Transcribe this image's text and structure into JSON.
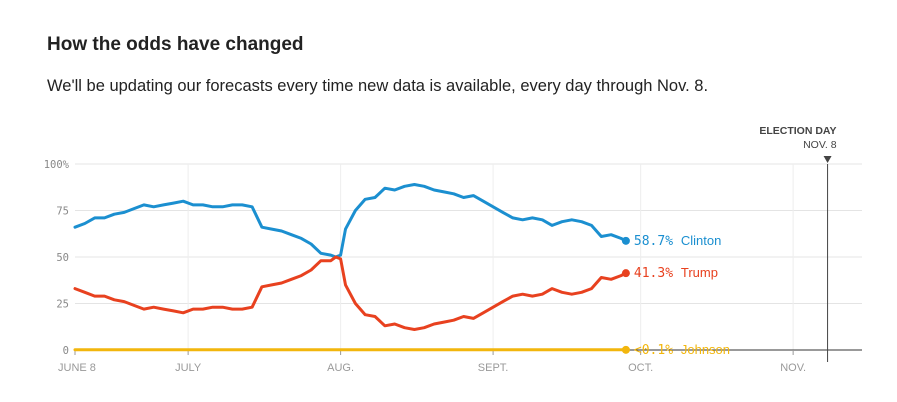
{
  "header": {
    "title": "How the odds have changed",
    "subtitle": "We'll be updating our forecasts every time new data is available, every day through Nov. 8."
  },
  "chart_data": {
    "type": "line",
    "title": "How the odds have changed",
    "subtitle": "We'll be updating our forecasts every time new data is available, every day through Nov. 8.",
    "xlabel": "",
    "ylabel": "",
    "x_range": [
      "2016-06-08",
      "2016-11-15"
    ],
    "ylim": [
      0,
      100
    ],
    "y_ticks": [
      0,
      25,
      50,
      75,
      100
    ],
    "y_tick_labels": [
      "0",
      "25",
      "50",
      "75",
      "100%"
    ],
    "x_ticks": [
      {
        "date": "2016-06-08",
        "label": "JUNE 8"
      },
      {
        "date": "2016-07-01",
        "label": "JULY"
      },
      {
        "date": "2016-08-01",
        "label": "AUG."
      },
      {
        "date": "2016-09-01",
        "label": "SEPT."
      },
      {
        "date": "2016-10-01",
        "label": "OCT."
      },
      {
        "date": "2016-11-01",
        "label": "NOV."
      }
    ],
    "grid": true,
    "event_marker": {
      "date": "2016-11-08",
      "label": "ELECTION DAY",
      "sublabel": "NOV. 8"
    },
    "series": [
      {
        "name": "Clinton",
        "color": "#1b8fd0",
        "end_label": "58.7%",
        "points": [
          [
            "2016-06-08",
            66
          ],
          [
            "2016-06-10",
            68
          ],
          [
            "2016-06-12",
            71
          ],
          [
            "2016-06-14",
            71
          ],
          [
            "2016-06-16",
            73
          ],
          [
            "2016-06-18",
            74
          ],
          [
            "2016-06-20",
            76
          ],
          [
            "2016-06-22",
            78
          ],
          [
            "2016-06-24",
            77
          ],
          [
            "2016-06-26",
            78
          ],
          [
            "2016-06-28",
            79
          ],
          [
            "2016-06-30",
            80
          ],
          [
            "2016-07-02",
            78
          ],
          [
            "2016-07-04",
            78
          ],
          [
            "2016-07-06",
            77
          ],
          [
            "2016-07-08",
            77
          ],
          [
            "2016-07-10",
            78
          ],
          [
            "2016-07-12",
            78
          ],
          [
            "2016-07-14",
            77
          ],
          [
            "2016-07-16",
            66
          ],
          [
            "2016-07-18",
            65
          ],
          [
            "2016-07-20",
            64
          ],
          [
            "2016-07-22",
            62
          ],
          [
            "2016-07-24",
            60
          ],
          [
            "2016-07-26",
            57
          ],
          [
            "2016-07-28",
            52
          ],
          [
            "2016-07-30",
            51
          ],
          [
            "2016-07-31",
            50
          ],
          [
            "2016-08-01",
            51
          ],
          [
            "2016-08-02",
            65
          ],
          [
            "2016-08-04",
            75
          ],
          [
            "2016-08-06",
            81
          ],
          [
            "2016-08-08",
            82
          ],
          [
            "2016-08-10",
            87
          ],
          [
            "2016-08-12",
            86
          ],
          [
            "2016-08-14",
            88
          ],
          [
            "2016-08-16",
            89
          ],
          [
            "2016-08-18",
            88
          ],
          [
            "2016-08-20",
            86
          ],
          [
            "2016-08-22",
            85
          ],
          [
            "2016-08-24",
            84
          ],
          [
            "2016-08-26",
            82
          ],
          [
            "2016-08-28",
            83
          ],
          [
            "2016-08-30",
            80
          ],
          [
            "2016-09-01",
            77
          ],
          [
            "2016-09-03",
            74
          ],
          [
            "2016-09-05",
            71
          ],
          [
            "2016-09-07",
            70
          ],
          [
            "2016-09-09",
            71
          ],
          [
            "2016-09-11",
            70
          ],
          [
            "2016-09-13",
            67
          ],
          [
            "2016-09-15",
            69
          ],
          [
            "2016-09-17",
            70
          ],
          [
            "2016-09-19",
            69
          ],
          [
            "2016-09-21",
            67
          ],
          [
            "2016-09-23",
            61
          ],
          [
            "2016-09-25",
            62
          ],
          [
            "2016-09-27",
            60
          ],
          [
            "2016-09-28",
            58.7
          ]
        ]
      },
      {
        "name": "Trump",
        "color": "#e8411f",
        "end_label": "41.3%",
        "points": [
          [
            "2016-06-08",
            33
          ],
          [
            "2016-06-10",
            31
          ],
          [
            "2016-06-12",
            29
          ],
          [
            "2016-06-14",
            29
          ],
          [
            "2016-06-16",
            27
          ],
          [
            "2016-06-18",
            26
          ],
          [
            "2016-06-20",
            24
          ],
          [
            "2016-06-22",
            22
          ],
          [
            "2016-06-24",
            23
          ],
          [
            "2016-06-26",
            22
          ],
          [
            "2016-06-28",
            21
          ],
          [
            "2016-06-30",
            20
          ],
          [
            "2016-07-02",
            22
          ],
          [
            "2016-07-04",
            22
          ],
          [
            "2016-07-06",
            23
          ],
          [
            "2016-07-08",
            23
          ],
          [
            "2016-07-10",
            22
          ],
          [
            "2016-07-12",
            22
          ],
          [
            "2016-07-14",
            23
          ],
          [
            "2016-07-16",
            34
          ],
          [
            "2016-07-18",
            35
          ],
          [
            "2016-07-20",
            36
          ],
          [
            "2016-07-22",
            38
          ],
          [
            "2016-07-24",
            40
          ],
          [
            "2016-07-26",
            43
          ],
          [
            "2016-07-28",
            48
          ],
          [
            "2016-07-30",
            48
          ],
          [
            "2016-07-31",
            50
          ],
          [
            "2016-08-01",
            49
          ],
          [
            "2016-08-02",
            35
          ],
          [
            "2016-08-04",
            25
          ],
          [
            "2016-08-06",
            19
          ],
          [
            "2016-08-08",
            18
          ],
          [
            "2016-08-10",
            13
          ],
          [
            "2016-08-12",
            14
          ],
          [
            "2016-08-14",
            12
          ],
          [
            "2016-08-16",
            11
          ],
          [
            "2016-08-18",
            12
          ],
          [
            "2016-08-20",
            14
          ],
          [
            "2016-08-22",
            15
          ],
          [
            "2016-08-24",
            16
          ],
          [
            "2016-08-26",
            18
          ],
          [
            "2016-08-28",
            17
          ],
          [
            "2016-08-30",
            20
          ],
          [
            "2016-09-01",
            23
          ],
          [
            "2016-09-03",
            26
          ],
          [
            "2016-09-05",
            29
          ],
          [
            "2016-09-07",
            30
          ],
          [
            "2016-09-09",
            29
          ],
          [
            "2016-09-11",
            30
          ],
          [
            "2016-09-13",
            33
          ],
          [
            "2016-09-15",
            31
          ],
          [
            "2016-09-17",
            30
          ],
          [
            "2016-09-19",
            31
          ],
          [
            "2016-09-21",
            33
          ],
          [
            "2016-09-23",
            39
          ],
          [
            "2016-09-25",
            38
          ],
          [
            "2016-09-27",
            40
          ],
          [
            "2016-09-28",
            41.3
          ]
        ]
      },
      {
        "name": "Johnson",
        "color": "#f2b60d",
        "end_label": "<0.1%",
        "points": [
          [
            "2016-06-08",
            0.1
          ],
          [
            "2016-07-01",
            0.1
          ],
          [
            "2016-08-01",
            0.1
          ],
          [
            "2016-09-01",
            0.1
          ],
          [
            "2016-09-28",
            0.1
          ]
        ]
      }
    ]
  }
}
